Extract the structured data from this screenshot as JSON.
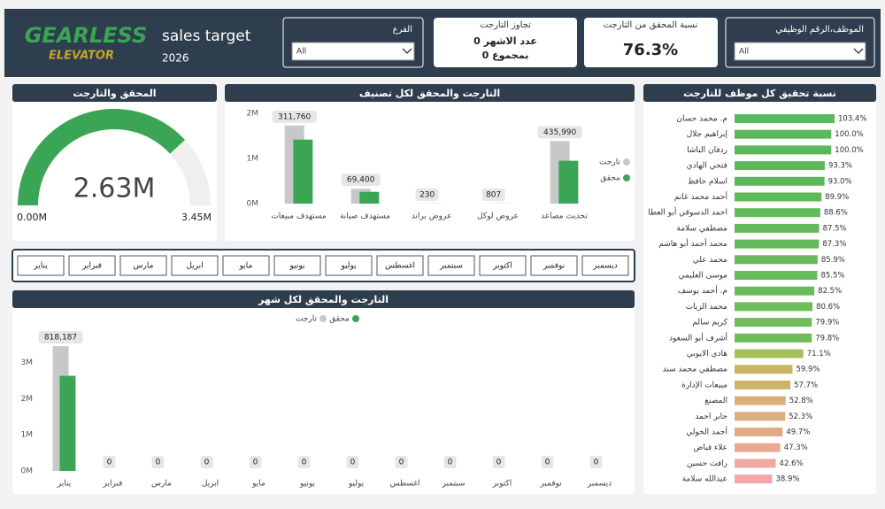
{
  "header": {
    "logo_top": "GEARLESS",
    "logo_bottom": "ELEVATOR",
    "title": "sales target",
    "year": "2026"
  },
  "filters": [
    {
      "label": "الفرع",
      "value": "All"
    },
    {
      "label": "الموظف،الرقم الوظيفي",
      "value": "All"
    }
  ],
  "cards": [
    {
      "title": "تجاوز التارجت",
      "lines": [
        "عدد الاشهر 0",
        "بمجموع 0"
      ]
    },
    {
      "title": "نسبة المحقق من التارجت",
      "value": "76.3%"
    }
  ],
  "months_slicer": [
    "يناير",
    "فبراير",
    "مارس",
    "ابريل",
    "مايو",
    "يونيو",
    "يوليو",
    "اغسطس",
    "سبتمبر",
    "اكتوبر",
    "نوفمبر",
    "ديسمبر"
  ],
  "chart_data": [
    {
      "type": "gauge",
      "title": "المحقق والتارجت",
      "value": 2.63,
      "value_label": "2.63M",
      "min": 0,
      "min_label": "0.00M",
      "max": 3.45,
      "max_label": "3.45M",
      "color": "#3aa655",
      "track_color": "#efefef"
    },
    {
      "type": "bar",
      "title": "التارجت والمحقق لكل تصنيف",
      "categories": [
        "مستهدف مبيعات",
        "مستهدف صيانة",
        "عروض براند",
        "عروض لوكل",
        "تحديث مصاعد"
      ],
      "series": [
        {
          "name": "تارجت",
          "color": "#c8c8c8",
          "values": [
            1730000,
            330000,
            2000,
            3000,
            1385000
          ]
        },
        {
          "name": "محقق",
          "color": "#3aa655",
          "values": [
            1418240,
            260600,
            1770,
            2193,
            949010
          ]
        }
      ],
      "remaining": {
        "values": [
          311760,
          69400,
          230,
          807,
          435990
        ],
        "value_labels": [
          "311,760",
          "69,400",
          "230",
          "807",
          "435,990"
        ]
      },
      "ylim": [
        0,
        2000000
      ],
      "yticks": [
        {
          "value": 0,
          "label": "0M"
        },
        {
          "value": 1000000,
          "label": "1M"
        },
        {
          "value": 2000000,
          "label": "2M"
        }
      ],
      "legend": "right"
    },
    {
      "type": "bar",
      "title": "التارجت والمحقق لكل شهر",
      "categories": [
        "يناير",
        "فبراير",
        "مارس",
        "ابريل",
        "مايو",
        "يونيو",
        "يوليو",
        "اغسطس",
        "سبتمبر",
        "اكتوبر",
        "نوفمبر",
        "ديسمبر"
      ],
      "series": [
        {
          "name": "تارجت",
          "color": "#c8c8c8",
          "values": [
            3450000,
            0,
            0,
            0,
            0,
            0,
            0,
            0,
            0,
            0,
            0,
            0
          ]
        },
        {
          "name": "محقق",
          "color": "#3aa655",
          "values": [
            2631813,
            0,
            0,
            0,
            0,
            0,
            0,
            0,
            0,
            0,
            0,
            0
          ]
        }
      ],
      "remaining": {
        "values": [
          818187,
          0,
          0,
          0,
          0,
          0,
          0,
          0,
          0,
          0,
          0,
          0
        ],
        "value_labels": [
          "818,187",
          "0",
          "0",
          "0",
          "0",
          "0",
          "0",
          "0",
          "0",
          "0",
          "0",
          "0"
        ]
      },
      "ylim": [
        0,
        3600000
      ],
      "yticks": [
        {
          "value": 0,
          "label": "0M"
        },
        {
          "value": 1000000,
          "label": "1M"
        },
        {
          "value": 2000000,
          "label": "2M"
        },
        {
          "value": 3000000,
          "label": "3M"
        }
      ],
      "legend": "top"
    },
    {
      "type": "hbar",
      "title": "نسبة تحقيق كل موظف للتارجت",
      "categories": [
        "م. محمد حسان",
        "إبراهيم جلال",
        "ردفان الباشا",
        "فتحي الهادي",
        "اسلام حافظ",
        "أحمد محمد غانم",
        "احمد الدسوقي أبو العطا",
        "مصطفي سلامة",
        "محمد أحمد أبو هاشم",
        "محمد علي",
        "موسى العليمي",
        "م. أحمد يوسف",
        "محمد الزيات",
        "كريم سالم",
        "أشرف أبو السعود",
        "هادي الايوبي",
        "مصطفي محمد سند",
        "مبيعات الإدارة",
        "المصنع",
        "جابر احمد",
        "أحمد الخولي",
        "علاء فياض",
        "رافت حسين",
        "عبدالله سلامة"
      ],
      "values": [
        103.4,
        100.0,
        100.0,
        93.3,
        93.0,
        89.9,
        88.6,
        87.5,
        87.3,
        85.9,
        85.5,
        82.5,
        80.6,
        79.9,
        79.8,
        71.1,
        59.9,
        57.7,
        52.8,
        52.3,
        49.7,
        47.3,
        42.6,
        38.9
      ],
      "value_labels": [
        "103.4%",
        "100.0%",
        "100.0%",
        "93.3%",
        "93.0%",
        "89.9%",
        "88.6%",
        "87.5%",
        "87.3%",
        "85.9%",
        "85.5%",
        "82.5%",
        "80.6%",
        "79.9%",
        "79.8%",
        "71.1%",
        "59.9%",
        "57.7%",
        "52.8%",
        "52.3%",
        "49.7%",
        "47.3%",
        "42.6%",
        "38.9%"
      ],
      "colors": [
        "#5cb85c",
        "#5cb85c",
        "#5cb85c",
        "#5db85b",
        "#5db85b",
        "#62b95a",
        "#62b95a",
        "#64ba5a",
        "#64ba5a",
        "#66ba5a",
        "#66ba5a",
        "#6abb5a",
        "#6ebc5a",
        "#70bc5a",
        "#70bc5a",
        "#a4c05a",
        "#c6b462",
        "#ccb26a",
        "#d8ae7a",
        "#dcad80",
        "#e2ab88",
        "#e8a990",
        "#f0a8a0",
        "#f4a6a8"
      ]
    }
  ]
}
